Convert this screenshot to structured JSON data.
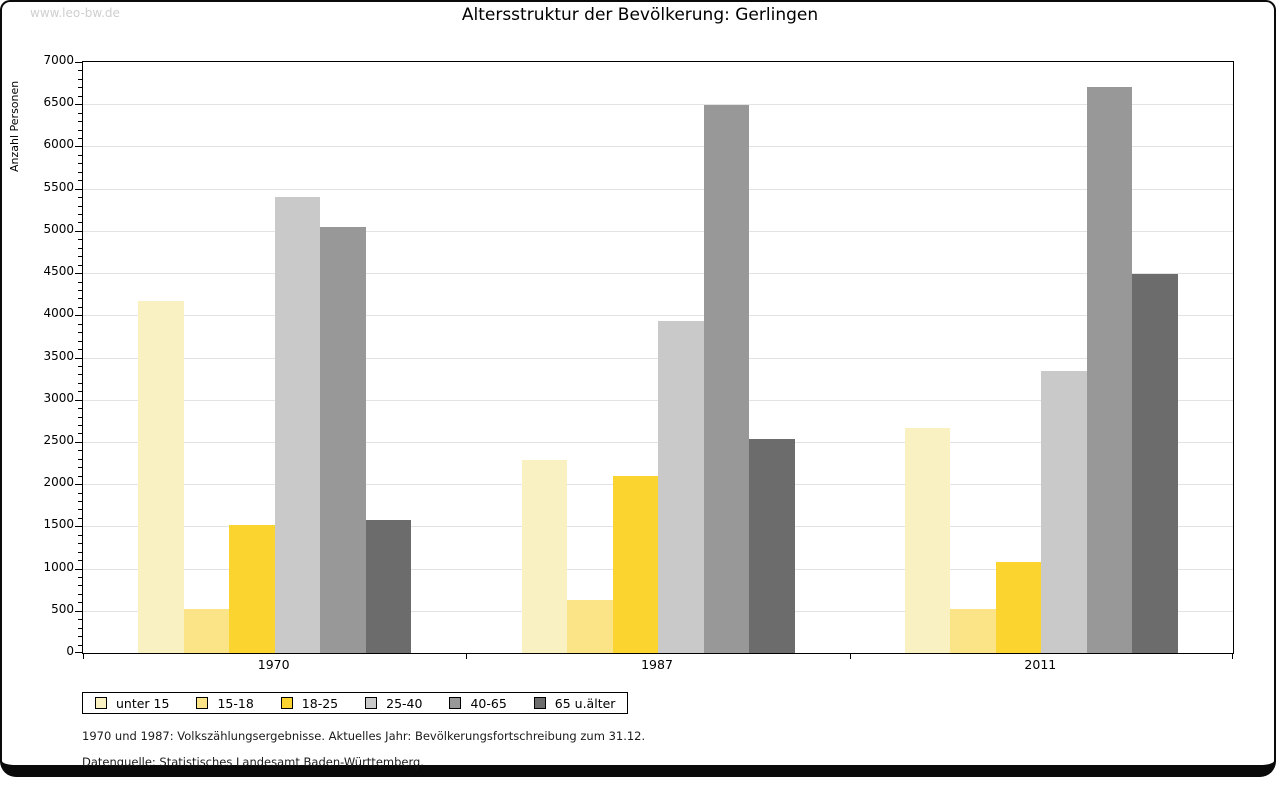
{
  "watermark": "www.leo-bw.de",
  "title": "Altersstruktur der Bevölkerung: Gerlingen",
  "chart_data": {
    "type": "bar",
    "title": "Altersstruktur der Bevölkerung: Gerlingen",
    "xlabel": "",
    "ylabel": "Anzahl Personen",
    "ylim": [
      0,
      7000
    ],
    "ytick_step": 500,
    "minor_tick_step": 100,
    "grid": true,
    "legend_position": "bottom-left",
    "categories": [
      "1970",
      "1987",
      "2011"
    ],
    "series": [
      {
        "name": "unter 15",
        "color": "#FAF1C3",
        "values": [
          4170,
          2290,
          2660
        ]
      },
      {
        "name": "15-18",
        "color": "#FBE488",
        "values": [
          520,
          630,
          520
        ]
      },
      {
        "name": "18-25",
        "color": "#FCD42F",
        "values": [
          1520,
          2100,
          1080
        ]
      },
      {
        "name": "25-40",
        "color": "#C9C9C9",
        "values": [
          5400,
          3930,
          3340
        ]
      },
      {
        "name": "40-65",
        "color": "#989898",
        "values": [
          5050,
          6490,
          6700
        ]
      },
      {
        "name": "65 u.älter",
        "color": "#6C6C6C",
        "values": [
          1570,
          2530,
          4490
        ]
      }
    ]
  },
  "footnotes": [
    "1970 und 1987: Volkszählungsergebnisse. Aktuelles Jahr: Bevölkerungsfortschreibung zum 31.12.",
    "Datenquelle: Statistisches Landesamt Baden-Württemberg."
  ]
}
